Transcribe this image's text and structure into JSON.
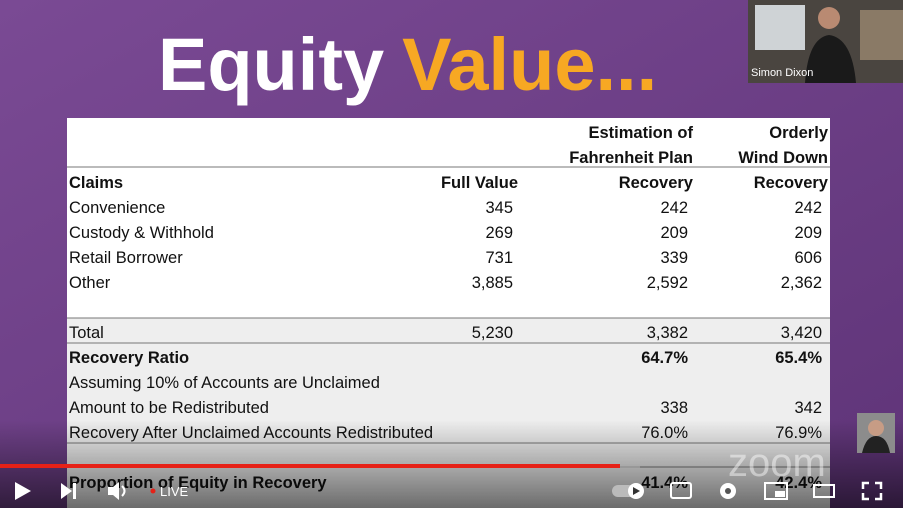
{
  "header": {
    "title_part1": "Equity",
    "title_part2": "Value..."
  },
  "speaker": {
    "name": "Simon Dixon"
  },
  "table": {
    "columns": [
      [
        "Claims"
      ],
      [
        "Full Value"
      ],
      [
        "Estimation of",
        "Fahrenheit Plan",
        "Recovery"
      ],
      [
        "Orderly",
        "Wind Down",
        "Recovery"
      ]
    ],
    "rows": [
      {
        "label": "Convenience",
        "cells": [
          "345",
          "242",
          "242"
        ]
      },
      {
        "label": "Custody & Withhold",
        "cells": [
          "269",
          "209",
          "209"
        ]
      },
      {
        "label": "Retail Borrower",
        "cells": [
          "731",
          "339",
          "606"
        ]
      },
      {
        "label": "Other",
        "cells": [
          "3,885",
          "2,592",
          "2,362"
        ]
      },
      {
        "label": "Total",
        "cells": [
          "5,230",
          "3,382",
          "3,420"
        ]
      },
      {
        "label": "Recovery Ratio",
        "cells": [
          null,
          "64.7%",
          "65.4%"
        ]
      },
      {
        "label": "Assuming 10% of Accounts are Unclaimed",
        "cells": [
          null,
          null,
          null
        ]
      },
      {
        "label": "Amount to be Redistributed",
        "cells": [
          null,
          "338",
          "342"
        ]
      },
      {
        "label": "Recovery After Unclaimed Accounts Redistributed",
        "cells": [
          null,
          "76.0%",
          "76.9%"
        ]
      },
      {
        "label": "Proportion of Equity in Recovery",
        "cells": [
          null,
          "41.4%",
          "42.4%"
        ]
      }
    ]
  },
  "player": {
    "live": "LIVE"
  },
  "watermark": "zoom"
}
